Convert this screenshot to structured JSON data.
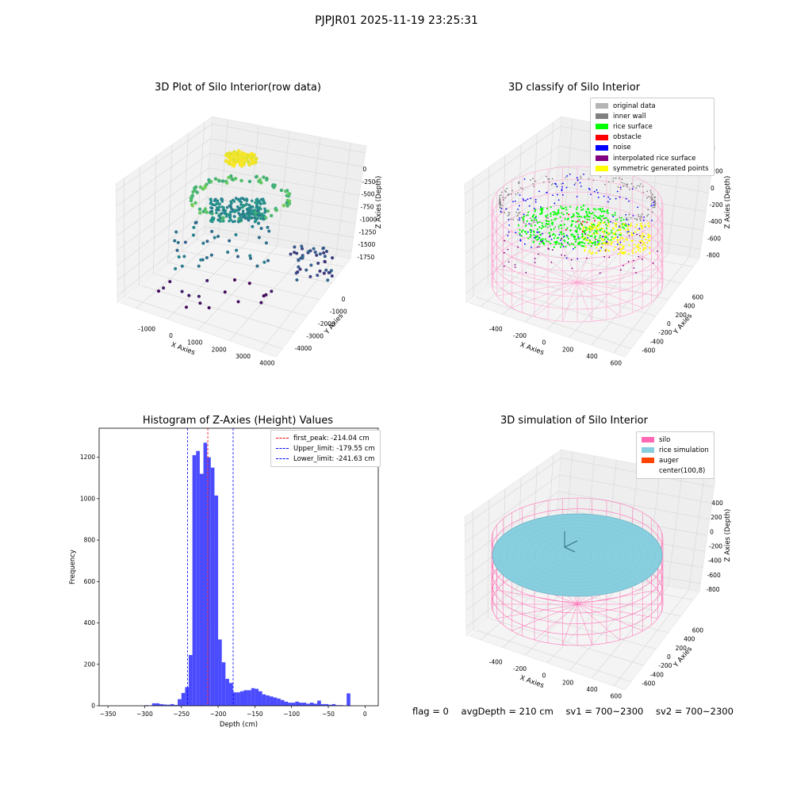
{
  "suptitle": "PJPJR01 2025-11-19 23:25:31",
  "chart_data": [
    {
      "type": "scatter",
      "title": "3D Plot of Silo Interior(row data)",
      "xlabel": "X Axies",
      "ylabel": "Y Axies",
      "zlabel": "Z Axies (Depth)",
      "x_ticks": [
        "-1000",
        "0",
        "1000",
        "2000",
        "3000",
        "4000"
      ],
      "y_ticks": [
        "0",
        "-1000",
        "-2000",
        "-3000",
        "-4000"
      ],
      "z_ticks": [
        "0",
        "-250",
        "-500",
        "-750",
        "-1000",
        "-1250",
        "-1500",
        "-1750"
      ],
      "xlim": [
        -1500,
        4500
      ],
      "ylim": [
        -4500,
        500
      ],
      "zlim": [
        -1900,
        100
      ],
      "colormap": "viridis",
      "grid": true
    },
    {
      "type": "scatter",
      "title": "3D classify of Silo Interior",
      "xlabel": "X Axies",
      "ylabel": "Y Axies",
      "zlabel": "Z Axies (Depth)",
      "x_ticks": [
        "-400",
        "-200",
        "0",
        "200",
        "400",
        "600"
      ],
      "y_ticks": [
        "600",
        "400",
        "200",
        "0",
        "-200",
        "-400",
        "-600"
      ],
      "z_ticks": [
        "200",
        "0",
        "-200",
        "-400",
        "-600",
        "-800"
      ],
      "legend_position": "upper-right",
      "legend": [
        {
          "label": "original data",
          "color": "#b4b4b4"
        },
        {
          "label": "inner wall",
          "color": "#808080"
        },
        {
          "label": "rice surface",
          "color": "#00ff00"
        },
        {
          "label": "obstacle",
          "color": "#ff0000"
        },
        {
          "label": "noise",
          "color": "#0000ff"
        },
        {
          "label": "interpolated rice surface",
          "color": "#800080"
        },
        {
          "label": "symmetric generated points",
          "color": "#ffff00"
        }
      ],
      "grid": true
    },
    {
      "type": "bar",
      "title": "Histogram of Z-Axies (Height) Values",
      "xlabel": "Depth (cm)",
      "ylabel": "Frequency",
      "xlim": [
        -362,
        18
      ],
      "ylim": [
        0,
        1340
      ],
      "x_ticks": [
        -350,
        -300,
        -250,
        -200,
        -150,
        -100,
        -50,
        0
      ],
      "y_ticks": [
        0,
        200,
        400,
        600,
        800,
        1000,
        1200
      ],
      "bin_width": 5,
      "bins_start": [
        -300,
        -295,
        -290,
        -285,
        -280,
        -275,
        -270,
        -265,
        -260,
        -255,
        -250,
        -245,
        -240,
        -235,
        -230,
        -225,
        -220,
        -215,
        -210,
        -205,
        -200,
        -195,
        -190,
        -185,
        -180,
        -175,
        -170,
        -165,
        -160,
        -155,
        -150,
        -145,
        -140,
        -135,
        -130,
        -125,
        -120,
        -115,
        -110,
        -105,
        -100,
        -95,
        -90,
        -85,
        -80,
        -75,
        -70,
        -65,
        -60,
        -55,
        -50,
        -45,
        -40,
        -35,
        -30,
        -25,
        -20,
        -15,
        -10,
        -5,
        0
      ],
      "counts": [
        3,
        2,
        12,
        12,
        8,
        6,
        5,
        8,
        4,
        32,
        62,
        90,
        245,
        1210,
        1230,
        1120,
        1270,
        1200,
        1150,
        1015,
        320,
        210,
        130,
        110,
        65,
        65,
        70,
        75,
        75,
        85,
        82,
        70,
        55,
        50,
        45,
        40,
        35,
        28,
        20,
        15,
        15,
        20,
        15,
        15,
        10,
        15,
        10,
        25,
        8,
        8,
        5,
        8,
        3,
        3,
        2,
        60,
        0,
        0,
        0,
        0,
        0
      ],
      "bar_color": "#4b4bff",
      "legend_position": "top-right",
      "lines": [
        {
          "label": "first_peak: -214.04 cm",
          "x": -214.04,
          "color": "#ff0000"
        },
        {
          "label": "Upper_limit: -179.55 cm",
          "x": -179.55,
          "color": "#0000ff"
        },
        {
          "label": "Lower_limit: -241.63 cm",
          "x": -241.63,
          "color": "#0000ff"
        }
      ]
    },
    {
      "type": "scatter",
      "title": "3D simulation of Silo Interior",
      "xlabel": "X Axies",
      "ylabel": "Y Axies",
      "zlabel": "Z Axies (Depth)",
      "x_ticks": [
        "-400",
        "-200",
        "0",
        "200",
        "400",
        "600"
      ],
      "y_ticks": [
        "600",
        "400",
        "200",
        "0",
        "-200",
        "-400",
        "-600"
      ],
      "z_ticks": [
        "400",
        "200",
        "0",
        "-200",
        "-400",
        "-600",
        "-800"
      ],
      "legend_position": "upper-right",
      "legend": [
        {
          "label": "silo",
          "color": "#ff69b4"
        },
        {
          "label": "rice simulation",
          "color": "#87cedf"
        },
        {
          "label": "auger",
          "color": "#ff4500"
        },
        {
          "label": "center(100,8)",
          "color": "#ffffff"
        }
      ],
      "grid": true
    }
  ],
  "status": {
    "flag": "flag = 0",
    "avg_depth": "avgDepth = 210 cm",
    "sv1": "sv1 = 700~2300",
    "sv2": "sv2 = 700~2300"
  }
}
